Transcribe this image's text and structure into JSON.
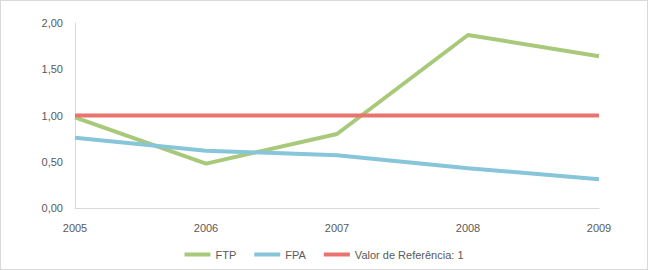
{
  "chart_data": {
    "type": "line",
    "categories": [
      "2005",
      "2006",
      "2007",
      "2008",
      "2009"
    ],
    "series": [
      {
        "name": "FTP",
        "color": "#a9c97a",
        "values": [
          0.98,
          0.48,
          0.8,
          1.87,
          1.64
        ]
      },
      {
        "name": "FPA",
        "color": "#86c5da",
        "values": [
          0.76,
          0.62,
          0.57,
          0.43,
          0.31
        ]
      },
      {
        "name": "Valor de Referência: 1",
        "color": "#ea7370",
        "values": [
          1,
          1,
          1,
          1,
          1
        ]
      }
    ],
    "ylim": [
      0,
      2
    ],
    "yticks": [
      {
        "value": 0,
        "label": "0,00"
      },
      {
        "value": 0.5,
        "label": "0,50"
      },
      {
        "value": 1,
        "label": "1,00"
      },
      {
        "value": 1.5,
        "label": "1,50"
      },
      {
        "value": 2,
        "label": "2,00"
      }
    ],
    "grid": false,
    "legend": "bottom"
  }
}
